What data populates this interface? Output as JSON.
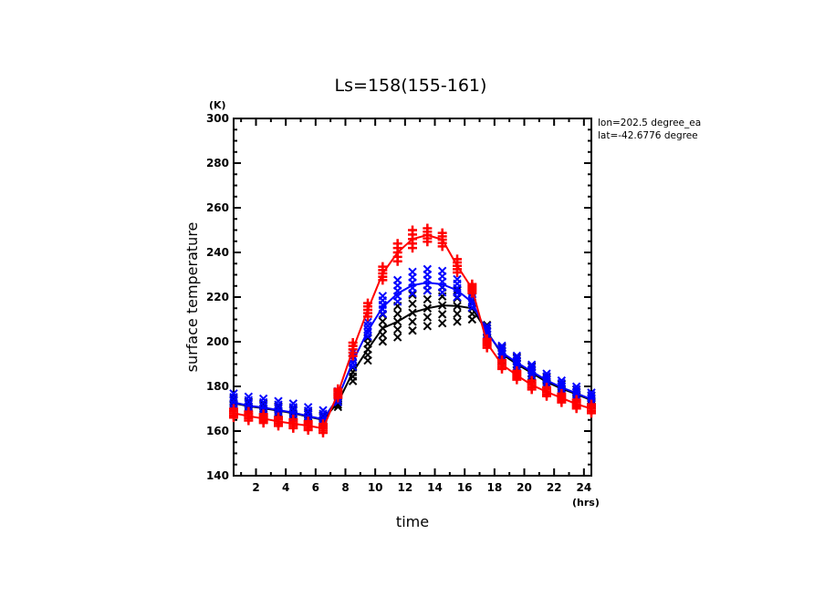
{
  "chart_data": {
    "type": "line",
    "title": "Ls=158(155-161)",
    "xlabel": "time",
    "ylabel": "surface temperature",
    "xunit": "(hrs)",
    "yunit": "(K)",
    "xlim": [
      0.5,
      24.5
    ],
    "ylim": [
      140,
      300
    ],
    "xticks": [
      2,
      4,
      6,
      8,
      10,
      12,
      14,
      16,
      18,
      20,
      22,
      24
    ],
    "xticklabels": [
      "2",
      "4",
      "6",
      "8",
      "10",
      "12",
      "14",
      "16",
      "18",
      "20",
      "22",
      "24"
    ],
    "xminor_step": 1,
    "yticks": [
      140,
      160,
      180,
      200,
      220,
      240,
      260,
      280,
      300
    ],
    "yticklabels": [
      "140",
      "160",
      "180",
      "200",
      "220",
      "240",
      "260",
      "280",
      "300"
    ],
    "yminor_step": 5,
    "grid": false,
    "annotations": [
      "lon=202.5 degree_ea",
      "lat=-42.6776 degree"
    ],
    "x": [
      0.5,
      1.5,
      2.5,
      3.5,
      4.5,
      5.5,
      6.5,
      7.5,
      8.5,
      9.5,
      10.5,
      11.5,
      12.5,
      13.5,
      14.5,
      15.5,
      16.5,
      17.5,
      18.5,
      19.5,
      20.5,
      21.5,
      22.5,
      23.5,
      24.5
    ],
    "series": [
      {
        "name": "black",
        "color": "#000000",
        "marker": "x",
        "values": [
          172.5,
          171.1,
          170.2,
          169.1,
          168.0,
          166.4,
          165.0,
          172.8,
          186.4,
          196.6,
          206.1,
          209.0,
          213.0,
          215.0,
          216.3,
          216.0,
          215.0,
          204.5,
          194.5,
          190.0,
          186.0,
          182.0,
          179.0,
          176.5,
          173.8
        ],
        "spread": [
          2,
          2,
          2,
          2,
          2,
          2,
          2,
          2,
          4,
          5,
          6,
          7,
          8,
          8,
          8,
          7,
          5,
          3,
          3,
          3,
          3,
          2,
          2,
          2,
          2
        ],
        "member_offsets": [
          -1.0,
          -0.5,
          0.0,
          0.5,
          1.0
        ]
      },
      {
        "name": "blue",
        "color": "#0000ff",
        "marker": "x",
        "values": [
          172.8,
          171.4,
          170.5,
          169.4,
          168.3,
          166.7,
          165.3,
          174.8,
          191.2,
          204.8,
          215.5,
          221.6,
          225.3,
          226.5,
          225.7,
          223.0,
          217.7,
          204.0,
          195.2,
          190.7,
          186.7,
          182.7,
          179.6,
          176.9,
          174.2
        ],
        "spread": [
          4,
          4,
          4,
          4,
          4,
          4,
          4,
          3,
          4,
          4,
          5,
          6,
          6,
          6,
          6,
          5,
          4,
          3,
          3,
          3,
          3,
          3,
          3,
          3,
          3
        ],
        "member_offsets": [
          -0.6,
          -0.2,
          0.2,
          0.6,
          1.0
        ]
      },
      {
        "name": "red",
        "color": "#ff0000",
        "marker": "+",
        "values": [
          168.0,
          166.7,
          165.6,
          164.3,
          163.3,
          162.4,
          161.2,
          176.9,
          196.6,
          214.3,
          230.6,
          240.0,
          246.0,
          247.8,
          245.7,
          234.0,
          223.8,
          199.3,
          189.8,
          185.0,
          180.6,
          177.6,
          174.8,
          172.1,
          170.0
        ],
        "spread": [
          2,
          2,
          2,
          2,
          2,
          2,
          2,
          2,
          3,
          3,
          3,
          4,
          4,
          3,
          3,
          3,
          2,
          2,
          2,
          2,
          2,
          2,
          2,
          2,
          2
        ],
        "member_offsets": [
          -1.0,
          -0.5,
          0.0,
          0.5,
          1.0
        ]
      }
    ]
  }
}
